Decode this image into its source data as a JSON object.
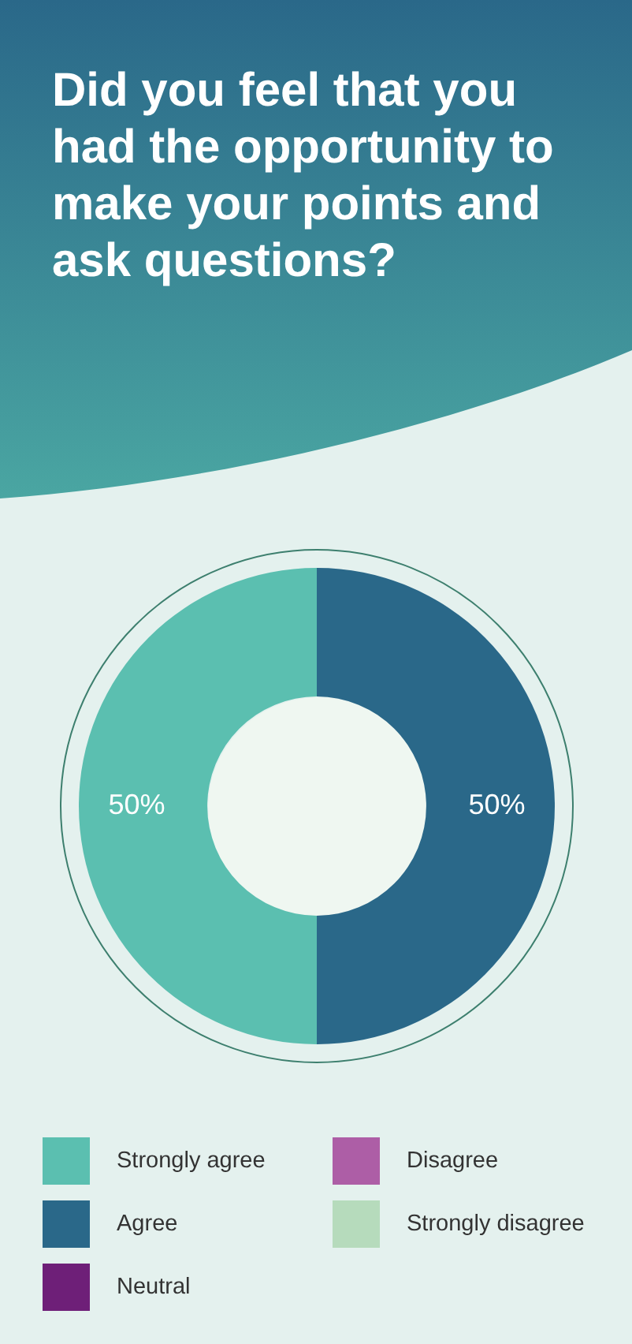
{
  "chart_data": {
    "type": "donut",
    "title": "Did you feel that you had the opportunity to make your points and ask questions?",
    "categories": [
      "Strongly agree",
      "Agree",
      "Neutral",
      "Disagree",
      "Strongly disagree"
    ],
    "values": [
      50,
      50,
      0,
      0,
      0
    ],
    "colors": [
      "#5bbfb0",
      "#2a6889",
      "#6e1f78",
      "#ad5ea6",
      "#b6dbbc"
    ],
    "value_labels": [
      "50%",
      "50%",
      null,
      null,
      null
    ],
    "legend": "bottom"
  }
}
